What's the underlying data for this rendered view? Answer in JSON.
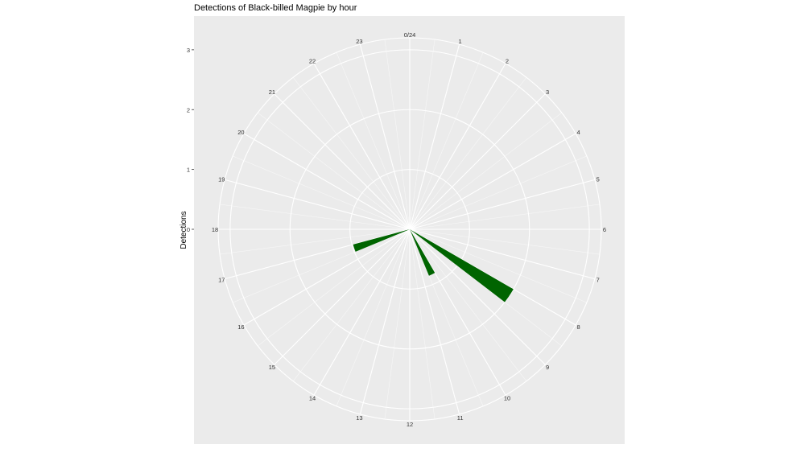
{
  "chart_data": {
    "type": "bar",
    "coord": "polar",
    "title": "Detections of Black-billed Magpie by hour",
    "xlabel": "",
    "ylabel": "Detections",
    "x_tick_labels": [
      "0/24",
      "1",
      "2",
      "3",
      "4",
      "5",
      "6",
      "7",
      "8",
      "9",
      "10",
      "11",
      "12",
      "13",
      "14",
      "15",
      "16",
      "17",
      "18",
      "19",
      "20",
      "21",
      "22",
      "23"
    ],
    "y_ticks": [
      0,
      1,
      2,
      3
    ],
    "ylim": [
      0,
      3.2
    ],
    "grid": true,
    "fill_color": "#006400",
    "panel_background": "#ebebeb",
    "grid_color": "#ffffff",
    "bars": [
      {
        "hour_start": 8.0,
        "hour_end": 8.5,
        "value": 2.0
      },
      {
        "hour_start": 10.0,
        "hour_end": 10.5,
        "value": 0.84
      },
      {
        "hour_start": 16.5,
        "hour_end": 17.0,
        "value": 0.98
      }
    ]
  }
}
